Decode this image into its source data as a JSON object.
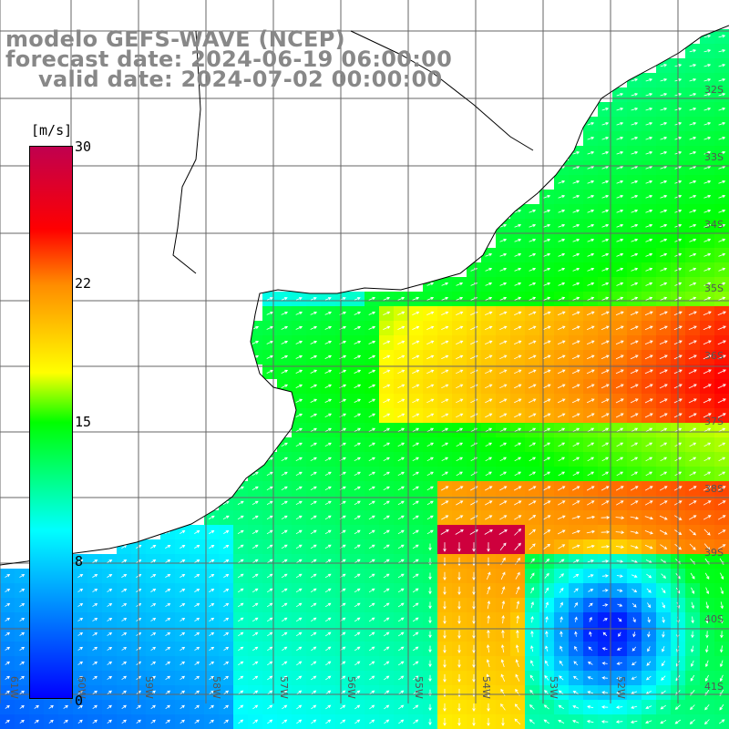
{
  "title": {
    "model": "modelo GEFS-WAVE (NCEP)",
    "forecast": "forecast date: 2024-06-19 06:00:00",
    "valid": "valid date: 2024-07-02 00:00:00"
  },
  "colorbar": {
    "unit": "[m/s]",
    "ticks": [
      "30",
      "22",
      "15",
      "8",
      "0"
    ],
    "min": 0,
    "max": 30,
    "colors": [
      "#0000ff",
      "#00ffff",
      "#00ff00",
      "#ffff00",
      "#ff8c00",
      "#ff0000",
      "#c0004f"
    ]
  },
  "map": {
    "lat_labels": [
      "32S",
      "33S",
      "34S",
      "35S",
      "36S",
      "37S",
      "38S",
      "39S",
      "40S",
      "41S"
    ],
    "lon_labels": [
      "61W",
      "60W",
      "59W",
      "58W",
      "57W",
      "56W",
      "55W",
      "54W",
      "53W",
      "52W"
    ],
    "land_color": "#ffffff",
    "grid_color": "#666666",
    "arrow_color": "#ffffff"
  }
}
